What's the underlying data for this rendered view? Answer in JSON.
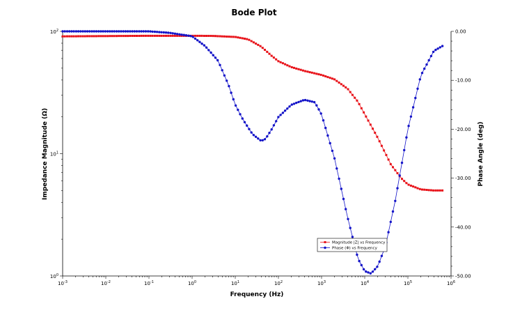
{
  "chart_data": {
    "type": "line",
    "title": "Bode Plot",
    "xlabel": "Frequency (Hz)",
    "ylabel_left": "Impedance Magnitude (Ω)",
    "ylabel_right": "Phase Angle (deg)",
    "x_scale": "log",
    "y_left_scale": "log",
    "xlim": [
      0.001,
      1000000
    ],
    "ylim_left": [
      1,
      100
    ],
    "ylim_right": [
      -50,
      0
    ],
    "x_ticks": [
      {
        "value": 0.001,
        "base": "10",
        "exp": "-3"
      },
      {
        "value": 0.01,
        "base": "10",
        "exp": "-2"
      },
      {
        "value": 0.1,
        "base": "10",
        "exp": "-1"
      },
      {
        "value": 1,
        "base": "10",
        "exp": "0"
      },
      {
        "value": 10,
        "base": "10",
        "exp": "1"
      },
      {
        "value": 100,
        "base": "10",
        "exp": "2"
      },
      {
        "value": 1000,
        "base": "10",
        "exp": "3"
      },
      {
        "value": 10000,
        "base": "10",
        "exp": "4"
      },
      {
        "value": 100000,
        "base": "10",
        "exp": "5"
      },
      {
        "value": 1000000,
        "base": "10",
        "exp": "6"
      }
    ],
    "y_left_ticks": [
      {
        "value": 1,
        "base": "10",
        "exp": "0"
      },
      {
        "value": 10,
        "base": "10",
        "exp": "1"
      },
      {
        "value": 100,
        "base": "10",
        "exp": "2"
      }
    ],
    "y_right_ticks": [
      {
        "value": 0,
        "label": "0.00"
      },
      {
        "value": -10,
        "label": "-10.00"
      },
      {
        "value": -20,
        "label": "-20.00"
      },
      {
        "value": -30,
        "label": "-30.00"
      },
      {
        "value": -40,
        "label": "-40.00"
      },
      {
        "value": -50,
        "label": "-50.00"
      }
    ],
    "grid": false,
    "legend_position": "bottom-center",
    "series": [
      {
        "name": "Magnitude |Z| vs Frequency",
        "axis": "left",
        "color": "#e8141b",
        "marker": "square",
        "x": [
          0.001,
          0.01,
          0.1,
          1,
          3,
          10,
          20,
          40,
          70,
          100,
          200,
          400,
          1000,
          2000,
          4000,
          7000,
          10000,
          20000,
          40000,
          70000,
          100000,
          200000,
          400000,
          630000
        ],
        "values": [
          91,
          91.5,
          92,
          92,
          91.8,
          90,
          86,
          75,
          63,
          57,
          51,
          47.5,
          44,
          40.5,
          34,
          26.5,
          21,
          13.5,
          8.2,
          6.3,
          5.6,
          5.1,
          5.0,
          5.0
        ]
      },
      {
        "name": "Phase (Φ) vs Frequency",
        "axis": "right",
        "color": "#1414c8",
        "marker": "circle",
        "x": [
          0.001,
          0.01,
          0.1,
          0.3,
          1,
          2,
          4,
          7,
          10,
          15,
          25,
          40,
          50,
          70,
          100,
          200,
          400,
          700,
          1000,
          2000,
          4000,
          7000,
          10000,
          14000,
          20000,
          30000,
          50000,
          100000,
          200000,
          400000,
          630000
        ],
        "values": [
          0,
          0,
          0,
          -0.3,
          -1,
          -3,
          -6,
          -11,
          -15,
          -18,
          -21,
          -22.4,
          -22,
          -20,
          -17.5,
          -15,
          -14,
          -14.5,
          -17,
          -26,
          -38,
          -46.5,
          -49,
          -49.5,
          -48,
          -44,
          -35,
          -20,
          -9,
          -4,
          -3
        ]
      }
    ]
  }
}
